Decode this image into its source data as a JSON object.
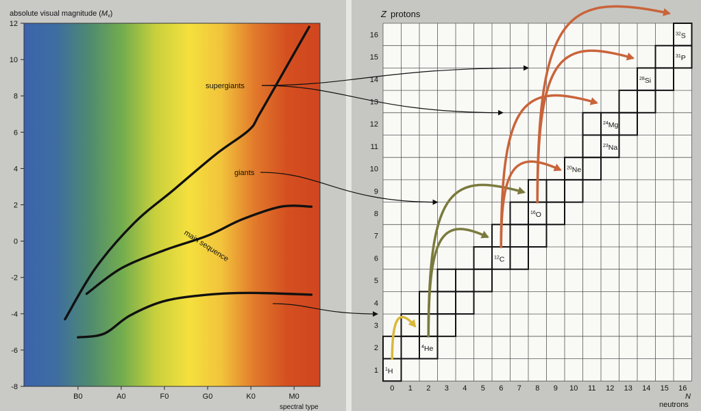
{
  "chart_data": [
    {
      "type": "line",
      "ylabel": "absolute visual magnitude (",
      "ylabel_symbol": "M",
      "ylabel_sub": "v",
      "ylabel_close": ")",
      "xlabel": "spectral type",
      "y_ticks": [
        "-8",
        "-6",
        "-4",
        "-2",
        "0",
        "2",
        "4",
        "6",
        "8",
        "10",
        "12"
      ],
      "y_tick_values": [
        -8,
        -6,
        -4,
        -2,
        0,
        2,
        4,
        6,
        8,
        10,
        12
      ],
      "ylim": [
        12,
        -8
      ],
      "x_ticks": [
        "B0",
        "A0",
        "F0",
        "G0",
        "K0",
        "M0"
      ],
      "xlim": [
        -1.25,
        5.6
      ],
      "background_gradient": [
        "#3b63ad",
        "#3e6ea0",
        "#4f8a70",
        "#73ad4e",
        "#c8d03c",
        "#f5e03e",
        "#f2c33b",
        "#e27a2c",
        "#d44f20",
        "#cf4520"
      ],
      "series": [
        {
          "label": "supergiants",
          "points": [
            [
              0,
              -5.3
            ],
            [
              0.6,
              -5.1
            ],
            [
              1.2,
              -4.1
            ],
            [
              2,
              -3.3
            ],
            [
              3,
              -2.95
            ],
            [
              4,
              -2.85
            ],
            [
              5.4,
              -2.95
            ]
          ]
        },
        {
          "label": "giants",
          "points": [
            [
              0.2,
              -2.9
            ],
            [
              1,
              -1.5
            ],
            [
              2,
              -0.5
            ],
            [
              3,
              0.3
            ],
            [
              3.8,
              1.2
            ],
            [
              4.7,
              1.9
            ],
            [
              5.4,
              1.9
            ]
          ]
        },
        {
          "label": "main sequence",
          "points": [
            [
              -0.3,
              -4.3
            ],
            [
              0.4,
              -1.5
            ],
            [
              1.3,
              1.0
            ],
            [
              2.2,
              2.8
            ],
            [
              3.2,
              4.8
            ],
            [
              3.95,
              6.1
            ],
            [
              4.2,
              7.0
            ],
            [
              4.8,
              9.5
            ],
            [
              5.35,
              11.8
            ]
          ]
        }
      ]
    },
    {
      "type": "grid",
      "ylabel_symbol": "Z",
      "ylabel": "protons",
      "xlabel_symbol": "N",
      "xlabel": "neutrons",
      "x_ticks": [
        "0",
        "1",
        "2",
        "3",
        "4",
        "5",
        "6",
        "7",
        "8",
        "9",
        "10",
        "11",
        "12",
        "13",
        "14",
        "15",
        "16"
      ],
      "y_ticks": [
        "1",
        "2",
        "3",
        "4",
        "5",
        "6",
        "7",
        "8",
        "9",
        "10",
        "11",
        "12",
        "13",
        "14",
        "15",
        "16"
      ],
      "nuclides": [
        {
          "mass": "1",
          "symbol": "H",
          "n": 0,
          "z": 1
        },
        {
          "mass": "4",
          "symbol": "He",
          "n": 2,
          "z": 2
        },
        {
          "mass": "12",
          "symbol": "C",
          "n": 6,
          "z": 6
        },
        {
          "mass": "16",
          "symbol": "O",
          "n": 8,
          "z": 8
        },
        {
          "mass": "20",
          "symbol": "Ne",
          "n": 10,
          "z": 10
        },
        {
          "mass": "23",
          "symbol": "Na",
          "n": 12,
          "z": 11
        },
        {
          "mass": "24",
          "symbol": "Mg",
          "n": 12,
          "z": 12
        },
        {
          "mass": "28",
          "symbol": "Si",
          "n": 14,
          "z": 14
        },
        {
          "mass": "31",
          "symbol": "P",
          "n": 16,
          "z": 15
        },
        {
          "mass": "32",
          "symbol": "S",
          "n": 16,
          "z": 16
        }
      ],
      "stable_band": [
        [
          0,
          1
        ],
        [
          0,
          2
        ],
        [
          1,
          2
        ],
        [
          2,
          2
        ],
        [
          1,
          3
        ],
        [
          2,
          3
        ],
        [
          3,
          3
        ],
        [
          2,
          4
        ],
        [
          3,
          4
        ],
        [
          4,
          4
        ],
        [
          3,
          5
        ],
        [
          4,
          5
        ],
        [
          5,
          5
        ],
        [
          5,
          6
        ],
        [
          6,
          6
        ],
        [
          7,
          6
        ],
        [
          6,
          7
        ],
        [
          7,
          7
        ],
        [
          8,
          7
        ],
        [
          7,
          8
        ],
        [
          8,
          8
        ],
        [
          9,
          8
        ],
        [
          8,
          9
        ],
        [
          9,
          9
        ],
        [
          10,
          9
        ],
        [
          10,
          10
        ],
        [
          11,
          10
        ],
        [
          11,
          11
        ],
        [
          12,
          11
        ],
        [
          11,
          12
        ],
        [
          12,
          12
        ],
        [
          13,
          12
        ],
        [
          13,
          13
        ],
        [
          14,
          13
        ],
        [
          14,
          14
        ],
        [
          15,
          14
        ],
        [
          15,
          15
        ],
        [
          16,
          15
        ],
        [
          16,
          16
        ]
      ],
      "fusion_arrows": [
        {
          "from": [
            0,
            1
          ],
          "to": [
            2,
            3
          ],
          "color": "#d9b83b"
        },
        {
          "from": [
            2,
            2
          ],
          "to": [
            8,
            9
          ],
          "color": "#7a7a3e"
        },
        {
          "from": [
            2,
            2
          ],
          "to": [
            6,
            7
          ],
          "color": "#7a7a3e"
        },
        {
          "from": [
            6,
            6
          ],
          "to": [
            10,
            10
          ],
          "color": "#c9643a"
        },
        {
          "from": [
            6,
            6
          ],
          "to": [
            12,
            13
          ],
          "color": "#c9643a"
        },
        {
          "from": [
            8,
            8
          ],
          "to": [
            14,
            15
          ],
          "color": "#c9643a"
        },
        {
          "from": [
            8,
            8
          ],
          "to": [
            16,
            17
          ],
          "color": "#c9643a"
        }
      ],
      "pointer_arrows": [
        {
          "label": "supergiants",
          "to": [
            8,
            14
          ]
        },
        {
          "label": "supergiants",
          "to": [
            6.6,
            12
          ]
        },
        {
          "label": "giants",
          "to": [
            3,
            8
          ]
        },
        {
          "label": "main sequence",
          "to": [
            -0.3,
            3
          ]
        }
      ]
    }
  ]
}
